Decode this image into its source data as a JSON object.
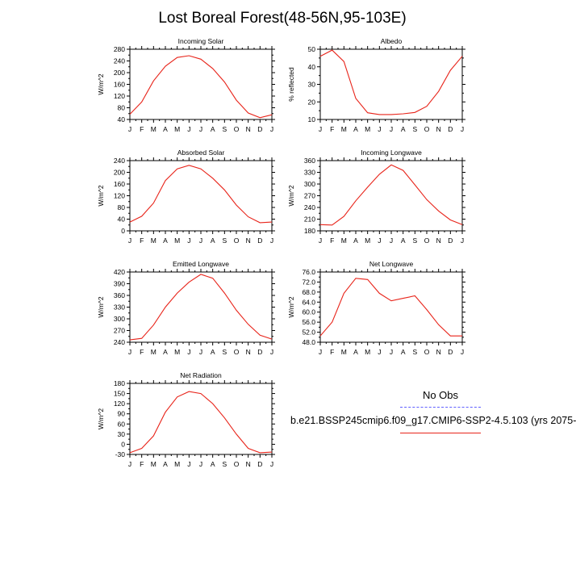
{
  "title": "Lost Boreal Forest(48-56N,95-103E)",
  "legend": {
    "header": "No Obs",
    "series_label": "b.e21.BSSP245cmip6.f09_g17.CMIP6-SSP2-4.5.103 (yrs 2075-",
    "line_color": "#e8241a",
    "obs_line_color": "#5f5fff"
  },
  "chart_data": [
    {
      "type": "line",
      "title": "Incoming Solar",
      "ylabel": "W/m^2",
      "x": [
        "J",
        "F",
        "M",
        "A",
        "M",
        "J",
        "J",
        "A",
        "S",
        "O",
        "N",
        "D",
        "J"
      ],
      "ylim": [
        40,
        280
      ],
      "yticks": [
        "40",
        "80",
        "120",
        "160",
        "200",
        "240",
        "280"
      ],
      "series": [
        {
          "values": [
            58,
            100,
            172,
            222,
            252,
            258,
            246,
            214,
            168,
            106,
            62,
            46,
            56
          ]
        }
      ]
    },
    {
      "type": "line",
      "title": "Albedo",
      "ylabel": "% reflected",
      "x": [
        "J",
        "F",
        "M",
        "A",
        "M",
        "J",
        "J",
        "A",
        "S",
        "O",
        "N",
        "D",
        "J"
      ],
      "ylim": [
        10,
        50
      ],
      "yticks": [
        "10",
        "20",
        "30",
        "40",
        "50"
      ],
      "series": [
        {
          "values": [
            46,
            49.5,
            43,
            22,
            13.8,
            12.8,
            12.8,
            13.2,
            14,
            17.5,
            26,
            38,
            46
          ]
        }
      ]
    },
    {
      "type": "line",
      "title": "Absorbed Solar",
      "ylabel": "W/m^2",
      "x": [
        "J",
        "F",
        "M",
        "A",
        "M",
        "J",
        "J",
        "A",
        "S",
        "O",
        "N",
        "D",
        "J"
      ],
      "ylim": [
        0,
        240
      ],
      "yticks": [
        "0",
        "40",
        "80",
        "120",
        "160",
        "200",
        "240"
      ],
      "series": [
        {
          "values": [
            30,
            50,
            95,
            172,
            212,
            224,
            212,
            180,
            140,
            88,
            48,
            28,
            30
          ]
        }
      ]
    },
    {
      "type": "line",
      "title": "Incoming Longwave",
      "ylabel": "W/m^2",
      "x": [
        "J",
        "F",
        "M",
        "A",
        "M",
        "J",
        "J",
        "A",
        "S",
        "O",
        "N",
        "D",
        "J"
      ],
      "ylim": [
        180,
        360
      ],
      "yticks": [
        "180",
        "210",
        "240",
        "270",
        "300",
        "330",
        "360"
      ],
      "series": [
        {
          "values": [
            196,
            195,
            217,
            257,
            292,
            325,
            349,
            335,
            298,
            260,
            231,
            208,
            196
          ]
        }
      ]
    },
    {
      "type": "line",
      "title": "Emitted Longwave",
      "ylabel": "W/m^2",
      "x": [
        "J",
        "F",
        "M",
        "A",
        "M",
        "J",
        "J",
        "A",
        "S",
        "O",
        "N",
        "D",
        "J"
      ],
      "ylim": [
        240,
        420
      ],
      "yticks": [
        "240",
        "270",
        "300",
        "330",
        "360",
        "390",
        "420"
      ],
      "series": [
        {
          "values": [
            246,
            250,
            284,
            330,
            366,
            394,
            414,
            404,
            366,
            322,
            286,
            258,
            248
          ]
        }
      ]
    },
    {
      "type": "line",
      "title": "Net Longwave",
      "ylabel": "W/m^2",
      "x": [
        "J",
        "F",
        "M",
        "A",
        "M",
        "J",
        "J",
        "A",
        "S",
        "O",
        "N",
        "D",
        "J"
      ],
      "ylim": [
        48,
        76
      ],
      "yticks": [
        "48.0",
        "52.0",
        "56.0",
        "60.0",
        "64.0",
        "68.0",
        "72.0",
        "76.0"
      ],
      "series": [
        {
          "values": [
            50.5,
            56,
            67.5,
            73.5,
            73,
            67.5,
            64.5,
            65.5,
            66.5,
            61,
            55,
            50.5,
            50.5
          ]
        }
      ]
    },
    {
      "type": "line",
      "title": "Net Radiation",
      "ylabel": "W/m^2",
      "x": [
        "J",
        "F",
        "M",
        "A",
        "M",
        "J",
        "J",
        "A",
        "S",
        "O",
        "N",
        "D",
        "J"
      ],
      "ylim": [
        -30,
        180
      ],
      "yticks": [
        "-30",
        "0",
        "30",
        "60",
        "90",
        "120",
        "150",
        "180"
      ],
      "series": [
        {
          "values": [
            -25,
            -12,
            25,
            95,
            140,
            156,
            150,
            120,
            78,
            30,
            -12,
            -25,
            -23
          ]
        }
      ]
    }
  ]
}
